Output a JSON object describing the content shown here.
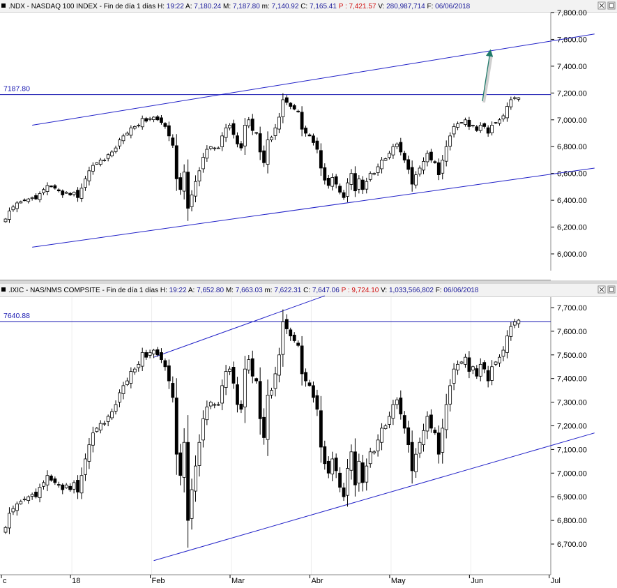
{
  "chart_data": [
    {
      "type": "candlestick",
      "header": {
        "symbol": ".NDX - NASDAQ 100 INDEX",
        "period": "Fin de día 1 días",
        "parts": [
          {
            "label": "H:",
            "value": "19:22"
          },
          {
            "label": "A:",
            "value": "7,180.24"
          },
          {
            "label": "M:",
            "value": "7,187.80"
          },
          {
            "label": "m:",
            "value": "7,140.92"
          },
          {
            "label": "C:",
            "value": "7,165.41"
          },
          {
            "label": "P :",
            "value": "7,421.57",
            "color": "#d01010"
          },
          {
            "label": "V:",
            "value": "280,987,714"
          },
          {
            "label": "F:",
            "value": "06/06/2018"
          }
        ]
      },
      "ylim": [
        5900,
        7800
      ],
      "y_ticks": [
        "7,800.00",
        "7,600.00",
        "7,400.00",
        "7,200.00",
        "7,000.00",
        "6,800.00",
        "6,600.00",
        "6,400.00",
        "6,200.00",
        "6,000.00"
      ],
      "y_tick_values": [
        7800,
        7600,
        7400,
        7200,
        7000,
        6800,
        6600,
        6400,
        6200,
        6000
      ],
      "reference_line": {
        "value": 7187.8,
        "label": "7187.80"
      },
      "trend_lines": [
        {
          "from": [
            7,
            6960
          ],
          "to": [
            155,
            7640
          ]
        },
        {
          "from": [
            7,
            6050
          ],
          "to": [
            155,
            6640
          ]
        }
      ],
      "arrow": {
        "from": [
          125.5,
          7140
        ],
        "to": [
          127.5,
          7500
        ],
        "color": "#1f7a6a"
      },
      "closes": [
        6260,
        6320,
        6350,
        6380,
        6390,
        6400,
        6410,
        6420,
        6410,
        6450,
        6480,
        6510,
        6500,
        6490,
        6470,
        6440,
        6460,
        6440,
        6460,
        6420,
        6490,
        6560,
        6620,
        6660,
        6680,
        6700,
        6700,
        6740,
        6760,
        6790,
        6850,
        6880,
        6900,
        6940,
        6950,
        6960,
        7010,
        6990,
        7010,
        7020,
        7000,
        6980,
        6950,
        6880,
        6810,
        6560,
        6480,
        6610,
        6340,
        6440,
        6540,
        6620,
        6720,
        6780,
        6800,
        6790,
        6790,
        6880,
        6940,
        6960,
        6890,
        6820,
        6790,
        6960,
        7000,
        6920,
        6900,
        6760,
        6680,
        6850,
        6870,
        6940,
        7020,
        7150,
        7130,
        7100,
        7080,
        7060,
        6930,
        6900,
        6880,
        6830,
        6780,
        6640,
        6550,
        6510,
        6570,
        6520,
        6460,
        6420,
        6530,
        6600,
        6470,
        6560,
        6480,
        6540,
        6600,
        6600,
        6650,
        6700,
        6710,
        6750,
        6800,
        6820,
        6760,
        6700,
        6630,
        6520,
        6590,
        6640,
        6690,
        6750,
        6700,
        6680,
        6590,
        6700,
        6800,
        6880,
        6950,
        6970,
        6980,
        7000,
        6950,
        6960,
        6920,
        6960,
        6950,
        6900,
        6960,
        6980,
        7000,
        7030,
        7100,
        7150,
        7165,
        7165
      ],
      "x_labels": []
    },
    {
      "type": "candlestick",
      "header": {
        "symbol": ".IXIC - NAS/NMS COMPSITE",
        "period": "Fin de día 1 días",
        "parts": [
          {
            "label": "H:",
            "value": "19:22"
          },
          {
            "label": "A:",
            "value": "7,652.80"
          },
          {
            "label": "M:",
            "value": "7,663.03"
          },
          {
            "label": "m:",
            "value": "7,622.31"
          },
          {
            "label": "C:",
            "value": "7,647.06"
          },
          {
            "label": "P :",
            "value": "9,724.10",
            "color": "#d01010"
          },
          {
            "label": "V:",
            "value": "1,033,566,802"
          },
          {
            "label": "F:",
            "value": "06/06/2018"
          }
        ]
      },
      "ylim": [
        6620,
        7720
      ],
      "y_ticks": [
        "7,700.00",
        "7,600.00",
        "7,500.00",
        "7,400.00",
        "7,300.00",
        "7,200.00",
        "7,100.00",
        "7,000.00",
        "6,900.00",
        "6,800.00",
        "6,700.00"
      ],
      "y_tick_values": [
        7700,
        7600,
        7500,
        7400,
        7300,
        7200,
        7100,
        7000,
        6900,
        6800,
        6700
      ],
      "reference_line": {
        "value": 7640.88,
        "label": "7640.88"
      },
      "trend_lines": [
        {
          "from": [
            39,
            7490
          ],
          "to": [
            84,
            7750
          ]
        },
        {
          "from": [
            39,
            6630
          ],
          "to": [
            155,
            7170
          ]
        }
      ],
      "closes": [
        6770,
        6830,
        6850,
        6870,
        6880,
        6890,
        6900,
        6910,
        6900,
        6940,
        6960,
        6990,
        6970,
        6960,
        6950,
        6930,
        6950,
        6930,
        6960,
        6920,
        6990,
        7060,
        7120,
        7170,
        7190,
        7210,
        7210,
        7240,
        7260,
        7290,
        7340,
        7370,
        7390,
        7430,
        7440,
        7460,
        7510,
        7490,
        7510,
        7520,
        7500,
        7480,
        7450,
        7390,
        7320,
        7080,
        6990,
        7130,
        6800,
        6930,
        7030,
        7130,
        7230,
        7280,
        7300,
        7290,
        7290,
        7370,
        7430,
        7440,
        7380,
        7290,
        7270,
        7440,
        7480,
        7410,
        7390,
        7230,
        7150,
        7330,
        7350,
        7420,
        7500,
        7640,
        7610,
        7580,
        7560,
        7540,
        7420,
        7390,
        7370,
        7320,
        7270,
        7110,
        7040,
        7000,
        7060,
        7010,
        6940,
        6900,
        7020,
        7090,
        6950,
        7050,
        6960,
        7030,
        7090,
        7090,
        7140,
        7190,
        7200,
        7240,
        7290,
        7310,
        7250,
        7190,
        7120,
        7010,
        7080,
        7130,
        7180,
        7240,
        7190,
        7170,
        7080,
        7190,
        7290,
        7370,
        7440,
        7460,
        7470,
        7490,
        7430,
        7450,
        7410,
        7460,
        7440,
        7390,
        7450,
        7470,
        7490,
        7520,
        7580,
        7620,
        7640,
        7647
      ],
      "x_labels": [
        "c",
        "18",
        "Feb",
        "Mar",
        "Abr",
        "May",
        "Jun",
        "Jul"
      ],
      "x_label_bars": [
        -1,
        18,
        39,
        60,
        81,
        102,
        123,
        144
      ]
    }
  ],
  "panels": [
    {
      "close_icon": "close-icon"
    },
    {
      "close_icon": "close-icon"
    }
  ]
}
